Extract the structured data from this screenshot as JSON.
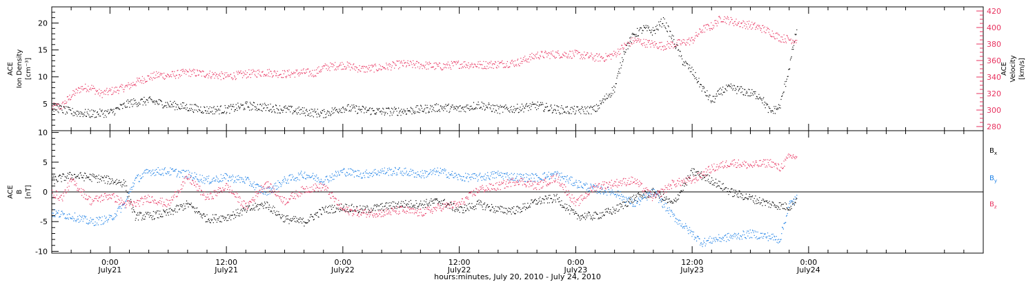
{
  "colors": {
    "black_series": "#000000",
    "pink_series": "#e8325f",
    "blue_series": "#1a7fe6",
    "axis": "#000000"
  },
  "chart_data": [
    {
      "type": "scatter",
      "panel": "top",
      "y_left_label": [
        "ACE",
        "Ion Density",
        "[cm⁻³]"
      ],
      "y_right_label": [
        "ACE",
        "Velocity",
        "[km/s]"
      ],
      "y_left_range": [
        0,
        23
      ],
      "y_left_ticks": [
        "5",
        "10",
        "15",
        "20"
      ],
      "y_right_range": [
        275,
        425
      ],
      "y_right_ticks": [
        "280",
        "300",
        "320",
        "340",
        "360",
        "380",
        "400",
        "420"
      ],
      "x_range_hours": [
        -6,
        90
      ],
      "series": [
        {
          "key": "density",
          "axis": "left",
          "color": "black",
          "points": [
            [
              -6,
              4.5
            ],
            [
              -4,
              3.5
            ],
            [
              -2,
              3.2
            ],
            [
              0,
              3.4
            ],
            [
              2,
              5.2
            ],
            [
              4,
              5.6
            ],
            [
              6,
              4.9
            ],
            [
              8,
              4.4
            ],
            [
              10,
              3.9
            ],
            [
              12,
              4.0
            ],
            [
              14,
              4.7
            ],
            [
              16,
              4.4
            ],
            [
              18,
              4.0
            ],
            [
              20,
              3.6
            ],
            [
              22,
              3.2
            ],
            [
              24,
              4.3
            ],
            [
              26,
              3.9
            ],
            [
              28,
              3.6
            ],
            [
              30,
              3.7
            ],
            [
              32,
              4.0
            ],
            [
              34,
              4.4
            ],
            [
              36,
              4.1
            ],
            [
              38,
              4.9
            ],
            [
              40,
              4.0
            ],
            [
              42,
              4.2
            ],
            [
              44,
              4.7
            ],
            [
              46,
              4.0
            ],
            [
              48,
              3.8
            ],
            [
              50,
              4.0
            ],
            [
              52,
              8.0
            ],
            [
              53,
              15.0
            ],
            [
              54,
              18.0
            ],
            [
              55,
              19.0
            ],
            [
              56,
              18.5
            ],
            [
              57,
              20.5
            ],
            [
              58,
              17.0
            ],
            [
              59,
              13.0
            ],
            [
              60,
              11.0
            ],
            [
              61,
              8.0
            ],
            [
              62,
              5.5
            ],
            [
              63,
              7.5
            ],
            [
              64,
              8.0
            ],
            [
              65,
              7.5
            ],
            [
              66,
              7.0
            ],
            [
              67,
              6.5
            ],
            [
              68,
              3.5
            ],
            [
              69,
              4.5
            ],
            [
              70,
              12.0
            ],
            [
              70.8,
              19.5
            ]
          ]
        },
        {
          "key": "velocity",
          "axis": "right",
          "color": "pink",
          "points": [
            [
              -6,
              304
            ],
            [
              -5,
              305
            ],
            [
              -4,
              318
            ],
            [
              -3,
              327
            ],
            [
              -2,
              328
            ],
            [
              -1,
              320
            ],
            [
              0,
              323
            ],
            [
              1,
              326
            ],
            [
              2,
              330
            ],
            [
              3,
              336
            ],
            [
              4,
              340
            ],
            [
              5,
              343
            ],
            [
              6,
              342
            ],
            [
              8,
              346
            ],
            [
              10,
              344
            ],
            [
              12,
              341
            ],
            [
              14,
              344
            ],
            [
              16,
              346
            ],
            [
              18,
              344
            ],
            [
              20,
              346
            ],
            [
              21,
              345
            ],
            [
              22,
              352
            ],
            [
              24,
              355
            ],
            [
              26,
              350
            ],
            [
              28,
              352
            ],
            [
              30,
              356
            ],
            [
              32,
              355
            ],
            [
              34,
              353
            ],
            [
              36,
              356
            ],
            [
              38,
              355
            ],
            [
              40,
              356
            ],
            [
              42,
              358
            ],
            [
              44,
              367
            ],
            [
              46,
              368
            ],
            [
              48,
              368
            ],
            [
              50,
              364
            ],
            [
              51,
              364
            ],
            [
              52,
              368
            ],
            [
              53,
              378
            ],
            [
              54,
              385
            ],
            [
              55,
              382
            ],
            [
              56,
              380
            ],
            [
              57,
              378
            ],
            [
              58,
              380
            ],
            [
              59,
              382
            ],
            [
              60,
              385
            ],
            [
              61,
              398
            ],
            [
              62,
              402
            ],
            [
              63,
              412
            ],
            [
              64,
              408
            ],
            [
              65,
              405
            ],
            [
              66,
              403
            ],
            [
              67,
              400
            ],
            [
              68,
              395
            ],
            [
              69,
              388
            ],
            [
              70,
              386
            ],
            [
              70.8,
              385
            ]
          ]
        }
      ]
    },
    {
      "type": "scatter",
      "panel": "bottom",
      "y_label": [
        "ACE",
        "B",
        "[nT]"
      ],
      "y_range": [
        -10.3,
        10.3
      ],
      "y_ticks": [
        "-10",
        "-5",
        "0",
        "5",
        "10"
      ],
      "x_range_hours": [
        -6,
        90
      ],
      "legend": [
        {
          "text": "B",
          "sub": "x",
          "color": "black"
        },
        {
          "text": "B",
          "sub": "y",
          "color": "blue"
        },
        {
          "text": "B",
          "sub": "z",
          "color": "pink"
        }
      ],
      "series": [
        {
          "key": "bx",
          "color": "black",
          "points": [
            [
              -6,
              2.0
            ],
            [
              -4,
              2.8
            ],
            [
              -2,
              2.5
            ],
            [
              0,
              2.0
            ],
            [
              1.5,
              1.5
            ],
            [
              2.5,
              -4.0
            ],
            [
              4,
              -4.0
            ],
            [
              6,
              -3.5
            ],
            [
              8,
              -2.0
            ],
            [
              10,
              -4.5
            ],
            [
              12,
              -4.2
            ],
            [
              14,
              -3.0
            ],
            [
              16,
              -2.0
            ],
            [
              18,
              -4.5
            ],
            [
              20,
              -5.0
            ],
            [
              22,
              -3.0
            ],
            [
              24,
              -2.5
            ],
            [
              26,
              -3.0
            ],
            [
              28,
              -2.5
            ],
            [
              30,
              -2.0
            ],
            [
              32,
              -2.0
            ],
            [
              34,
              -1.5
            ],
            [
              36,
              -3.0
            ],
            [
              38,
              -2.0
            ],
            [
              40,
              -3.0
            ],
            [
              42,
              -3.0
            ],
            [
              44,
              -1.5
            ],
            [
              46,
              -1.0
            ],
            [
              48,
              -4.0
            ],
            [
              50,
              -4.0
            ],
            [
              52,
              -3.0
            ],
            [
              54,
              -1.0
            ],
            [
              56,
              0.0
            ],
            [
              58,
              -2.0
            ],
            [
              60,
              3.5
            ],
            [
              62,
              2.0
            ],
            [
              64,
              0.0
            ],
            [
              66,
              -1.0
            ],
            [
              68,
              -2.0
            ],
            [
              70,
              -2.5
            ],
            [
              70.8,
              -1.0
            ]
          ]
        },
        {
          "key": "by",
          "color": "blue",
          "points": [
            [
              -6,
              -3.5
            ],
            [
              -4,
              -4.0
            ],
            [
              -3,
              -4.5
            ],
            [
              -2,
              -5.0
            ],
            [
              0,
              -4.5
            ],
            [
              1.5,
              -2.0
            ],
            [
              2.5,
              2.0
            ],
            [
              4,
              3.5
            ],
            [
              6,
              3.5
            ],
            [
              8,
              3.0
            ],
            [
              10,
              2.0
            ],
            [
              12,
              2.5
            ],
            [
              14,
              2.0
            ],
            [
              16,
              0.0
            ],
            [
              18,
              2.0
            ],
            [
              20,
              3.0
            ],
            [
              22,
              2.0
            ],
            [
              24,
              3.5
            ],
            [
              26,
              3.0
            ],
            [
              28,
              3.5
            ],
            [
              30,
              3.5
            ],
            [
              32,
              3.0
            ],
            [
              34,
              3.5
            ],
            [
              36,
              2.5
            ],
            [
              38,
              2.5
            ],
            [
              40,
              3.0
            ],
            [
              42,
              2.5
            ],
            [
              44,
              2.5
            ],
            [
              46,
              3.0
            ],
            [
              48,
              1.5
            ],
            [
              50,
              0.5
            ],
            [
              52,
              0.0
            ],
            [
              54,
              -2.0
            ],
            [
              56,
              0.0
            ],
            [
              58,
              -4.0
            ],
            [
              60,
              -7.0
            ],
            [
              61,
              -8.5
            ],
            [
              62,
              -8.0
            ],
            [
              64,
              -7.5
            ],
            [
              66,
              -7.0
            ],
            [
              68,
              -7.5
            ],
            [
              69,
              -8.0
            ],
            [
              70,
              -2.0
            ],
            [
              70.8,
              -1.0
            ]
          ]
        },
        {
          "key": "bz",
          "color": "pink",
          "points": [
            [
              -6,
              0.0
            ],
            [
              -5,
              -1.0
            ],
            [
              -4,
              2.0
            ],
            [
              -2,
              -1.5
            ],
            [
              0,
              -0.5
            ],
            [
              1.5,
              -2.0
            ],
            [
              2.5,
              -2.0
            ],
            [
              4,
              -1.0
            ],
            [
              6,
              -2.0
            ],
            [
              8,
              2.5
            ],
            [
              10,
              -1.0
            ],
            [
              12,
              1.0
            ],
            [
              14,
              -2.5
            ],
            [
              16,
              1.5
            ],
            [
              18,
              -1.5
            ],
            [
              20,
              0.5
            ],
            [
              22,
              1.0
            ],
            [
              24,
              -3.0
            ],
            [
              26,
              -3.5
            ],
            [
              28,
              -3.5
            ],
            [
              30,
              -3.0
            ],
            [
              32,
              -3.5
            ],
            [
              34,
              -2.5
            ],
            [
              36,
              -2.0
            ],
            [
              38,
              0.5
            ],
            [
              40,
              1.0
            ],
            [
              42,
              2.0
            ],
            [
              44,
              1.0
            ],
            [
              46,
              2.5
            ],
            [
              48,
              -2.0
            ],
            [
              50,
              1.0
            ],
            [
              52,
              1.5
            ],
            [
              54,
              2.0
            ],
            [
              56,
              -1.0
            ],
            [
              58,
              1.5
            ],
            [
              60,
              2.0
            ],
            [
              62,
              4.0
            ],
            [
              64,
              5.0
            ],
            [
              66,
              4.5
            ],
            [
              68,
              5.0
            ],
            [
              69,
              4.0
            ],
            [
              70,
              6.0
            ],
            [
              70.8,
              6.0
            ]
          ]
        }
      ]
    }
  ],
  "x_axis": {
    "ticks": [
      {
        "hour": 0,
        "time": "0:00",
        "day": "July21"
      },
      {
        "hour": 12,
        "time": "12:00",
        "day": "July21"
      },
      {
        "hour": 24,
        "time": "0:00",
        "day": "July22"
      },
      {
        "hour": 36,
        "time": "12:00",
        "day": "July22"
      },
      {
        "hour": 48,
        "time": "0:00",
        "day": "July23"
      },
      {
        "hour": 60,
        "time": "12:00",
        "day": "July23"
      },
      {
        "hour": 72,
        "time": "0:00",
        "day": "July24"
      }
    ],
    "label": "hours:minutes, July 20, 2010 - July 24, 2010"
  }
}
